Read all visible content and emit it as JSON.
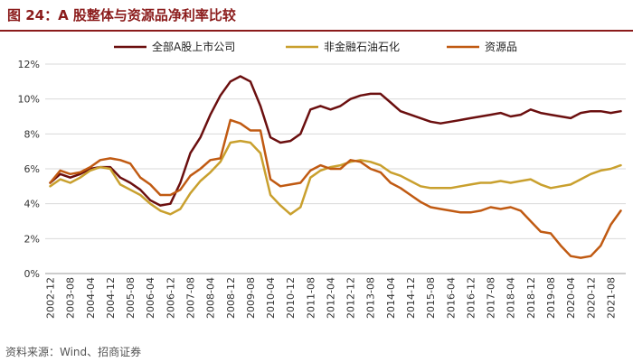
{
  "header": {
    "title": "图 24：A 股整体与资源品净利率比较"
  },
  "footer": {
    "source": "资料来源：Wind、招商证券"
  },
  "chart_data": {
    "type": "line",
    "title": "A 股整体与资源品净利率比较",
    "xlabel": "",
    "ylabel": "",
    "ylim": [
      0,
      12
    ],
    "yticks": [
      "0%",
      "2%",
      "4%",
      "6%",
      "8%",
      "10%",
      "12%"
    ],
    "grid": true,
    "legend": "top",
    "categories": [
      "2002-12",
      "2003-04",
      "2003-08",
      "2003-12",
      "2004-04",
      "2004-08",
      "2004-12",
      "2005-04",
      "2005-08",
      "2005-12",
      "2006-04",
      "2006-08",
      "2006-12",
      "2007-04",
      "2007-08",
      "2007-12",
      "2008-04",
      "2008-08",
      "2008-12",
      "2009-04",
      "2009-08",
      "2009-12",
      "2010-04",
      "2010-08",
      "2010-12",
      "2011-04",
      "2011-08",
      "2011-12",
      "2012-04",
      "2012-08",
      "2012-12",
      "2013-04",
      "2013-08",
      "2013-12",
      "2014-04",
      "2014-08",
      "2014-12",
      "2015-04",
      "2015-08",
      "2015-12",
      "2016-04",
      "2016-08",
      "2016-12",
      "2017-04",
      "2017-08",
      "2017-12",
      "2018-04",
      "2018-08",
      "2018-12",
      "2019-04",
      "2019-08",
      "2019-12",
      "2020-04",
      "2020-08",
      "2020-12",
      "2021-04",
      "2021-08",
      "2021-12"
    ],
    "xtick_labels": [
      "2002-12",
      "2003-08",
      "2004-04",
      "2004-12",
      "2005-08",
      "2006-04",
      "2006-12",
      "2007-08",
      "2008-04",
      "2008-12",
      "2009-08",
      "2010-04",
      "2010-12",
      "2011-08",
      "2012-04",
      "2012-12",
      "2013-08",
      "2014-04",
      "2014-12",
      "2015-08",
      "2016-04",
      "2016-12",
      "2017-08",
      "2018-04",
      "2018-12",
      "2019-08",
      "2020-04",
      "2020-12",
      "2021-08"
    ],
    "series": [
      {
        "name": "全部A股上市公司",
        "color": "#6b0f0f",
        "values": [
          5.2,
          5.7,
          5.5,
          5.7,
          6.0,
          6.1,
          6.1,
          5.5,
          5.2,
          4.8,
          4.2,
          3.9,
          4.0,
          5.2,
          6.9,
          7.8,
          9.1,
          10.2,
          11.0,
          11.3,
          11.0,
          9.6,
          7.8,
          7.5,
          7.6,
          8.0,
          9.4,
          9.6,
          9.4,
          9.6,
          10.0,
          10.2,
          10.3,
          10.3,
          9.8,
          9.3,
          9.1,
          8.9,
          8.7,
          8.6,
          8.7,
          8.8,
          8.9,
          9.0,
          9.1,
          9.2,
          9.0,
          9.1,
          9.4,
          9.2,
          9.1,
          9.0,
          8.9,
          9.2,
          9.3,
          9.3,
          9.2,
          9.3
        ]
      },
      {
        "name": "非金融石油石化",
        "color": "#c9a02e",
        "values": [
          5.0,
          5.4,
          5.2,
          5.5,
          5.9,
          6.1,
          6.0,
          5.1,
          4.8,
          4.5,
          4.0,
          3.6,
          3.4,
          3.7,
          4.6,
          5.3,
          5.8,
          6.4,
          7.5,
          7.6,
          7.5,
          6.9,
          4.5,
          3.9,
          3.4,
          3.8,
          5.5,
          5.9,
          6.1,
          6.2,
          6.4,
          6.5,
          6.4,
          6.2,
          5.8,
          5.6,
          5.3,
          5.0,
          4.9,
          4.9,
          4.9,
          5.0,
          5.1,
          5.2,
          5.2,
          5.3,
          5.2,
          5.3,
          5.4,
          5.1,
          4.9,
          5.0,
          5.1,
          5.4,
          5.7,
          5.9,
          6.0,
          6.2
        ]
      },
      {
        "name": "资源品",
        "color": "#c05a12",
        "values": [
          5.2,
          5.9,
          5.7,
          5.8,
          6.1,
          6.5,
          6.6,
          6.5,
          6.3,
          5.5,
          5.1,
          4.5,
          4.5,
          4.8,
          5.6,
          6.0,
          6.5,
          6.6,
          8.8,
          8.6,
          8.2,
          8.2,
          5.4,
          5.0,
          5.1,
          5.2,
          5.9,
          6.2,
          6.0,
          6.0,
          6.5,
          6.4,
          6.0,
          5.8,
          5.2,
          4.9,
          4.5,
          4.1,
          3.8,
          3.7,
          3.6,
          3.5,
          3.5,
          3.6,
          3.8,
          3.7,
          3.8,
          3.6,
          3.0,
          2.4,
          2.3,
          1.6,
          1.0,
          0.9,
          1.0,
          1.6,
          2.8,
          3.6
        ]
      }
    ]
  }
}
